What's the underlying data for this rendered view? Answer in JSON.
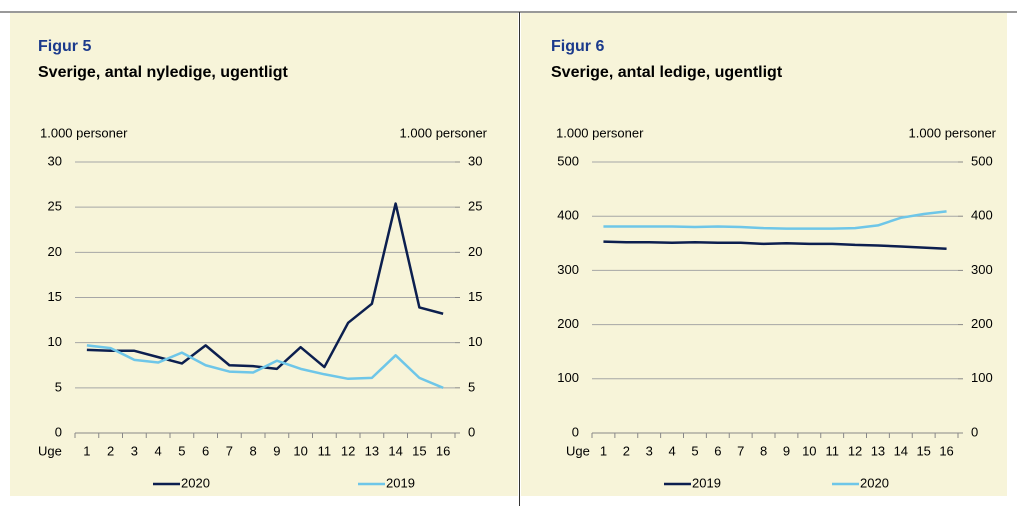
{
  "chart_data": [
    {
      "type": "line",
      "title": "Figur 5",
      "subtitle": "Sverige, antal nyledige, ugentligt",
      "y_label": "1.000 personer",
      "y2_label": "1.000 personer",
      "x_label": "Uge",
      "categories": [
        "1",
        "2",
        "3",
        "4",
        "5",
        "6",
        "7",
        "8",
        "9",
        "10",
        "11",
        "12",
        "13",
        "14",
        "15",
        "16"
      ],
      "series": [
        {
          "name": "2020",
          "color": "#0c1f4f",
          "values": [
            9.2,
            9.1,
            9.1,
            8.4,
            7.7,
            9.7,
            7.5,
            7.4,
            7.1,
            9.5,
            7.3,
            12.2,
            14.3,
            25.4,
            13.9,
            13.2
          ]
        },
        {
          "name": "2019",
          "color": "#6ec6e8",
          "values": [
            9.7,
            9.4,
            8.1,
            7.8,
            8.9,
            7.5,
            6.8,
            6.7,
            8.0,
            7.1,
            6.5,
            6.0,
            6.1,
            8.6,
            6.1,
            5.0
          ]
        }
      ],
      "ylim": [
        0,
        30
      ],
      "yticks": [
        0,
        5,
        10,
        15,
        20,
        25,
        30
      ],
      "y2lim": [
        0,
        30
      ],
      "y2ticks": [
        0,
        5,
        10,
        15,
        20,
        25,
        30
      ],
      "grid": true
    },
    {
      "type": "line",
      "title": "Figur 6",
      "subtitle": "Sverige, antal ledige, ugentligt",
      "y_label": "1.000 personer",
      "y2_label": "1.000 personer",
      "x_label": "Uge",
      "categories": [
        "1",
        "2",
        "3",
        "4",
        "5",
        "6",
        "7",
        "8",
        "9",
        "10",
        "11",
        "12",
        "13",
        "14",
        "15",
        "16"
      ],
      "series": [
        {
          "name": "2019",
          "color": "#0c1f4f",
          "values": [
            353,
            352,
            352,
            351,
            352,
            351,
            351,
            349,
            350,
            349,
            349,
            347,
            346,
            344,
            342,
            340
          ]
        },
        {
          "name": "2020",
          "color": "#6ec6e8",
          "values": [
            381,
            381,
            381,
            381,
            380,
            381,
            380,
            378,
            377,
            377,
            377,
            378,
            383,
            397,
            404,
            409
          ]
        }
      ],
      "ylim": [
        0,
        500
      ],
      "yticks": [
        0,
        100,
        200,
        300,
        400,
        500
      ],
      "y2lim": [
        0,
        500
      ],
      "y2ticks": [
        0,
        100,
        200,
        300,
        400,
        500
      ],
      "grid": true
    }
  ]
}
